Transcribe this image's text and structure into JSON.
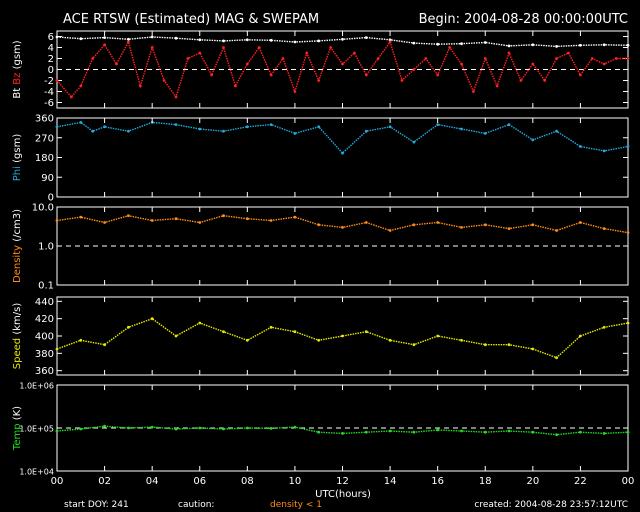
{
  "header": {
    "title": "ACE RTSW (Estimated) MAG & SWEPAM",
    "begin": "Begin: 2004-08-28 00:00:00UTC"
  },
  "footer": {
    "start_doy": "start DOY: 241",
    "caution": "caution:",
    "caution_note": "density < 1",
    "created": "created: 2004-08-28 23:57:12UTC"
  },
  "colors": {
    "bt": "#ffffff",
    "bz": "#ff2020",
    "phi": "#22aadd",
    "density": "#ff8c1a",
    "speed": "#e8e800",
    "temp": "#22dd22",
    "frame": "#ffffff",
    "caution": "#ff8c1a"
  },
  "chart_data": {
    "type": "line",
    "xlabel": "UTC(hours)",
    "x_ticks": [
      "00",
      "02",
      "04",
      "06",
      "08",
      "10",
      "12",
      "14",
      "16",
      "18",
      "20",
      "22",
      "00"
    ],
    "xlim": [
      0,
      24
    ],
    "panels": [
      {
        "id": "mag",
        "ylabel_parts": [
          "Bt",
          "Bz",
          "(gsm)"
        ],
        "ylim": [
          -7,
          7
        ],
        "y_ticks": [
          "6",
          "4",
          "2",
          "0",
          "-2",
          "-4",
          "-6"
        ],
        "reference_line": 0,
        "series": [
          {
            "name": "Bt",
            "points": [
              [
                0,
                5.9
              ],
              [
                1,
                5.6
              ],
              [
                2,
                5.8
              ],
              [
                3,
                5.5
              ],
              [
                4,
                5.9
              ],
              [
                5,
                5.7
              ],
              [
                6,
                5.4
              ],
              [
                7,
                5.2
              ],
              [
                8,
                5.4
              ],
              [
                9,
                5.3
              ],
              [
                10,
                5.0
              ],
              [
                11,
                5.2
              ],
              [
                12,
                5.5
              ],
              [
                13,
                5.8
              ],
              [
                14,
                5.4
              ],
              [
                15,
                4.8
              ],
              [
                16,
                4.6
              ],
              [
                17,
                4.7
              ],
              [
                18,
                4.9
              ],
              [
                19,
                4.3
              ],
              [
                20,
                4.5
              ],
              [
                21,
                4.2
              ],
              [
                22,
                4.4
              ],
              [
                23,
                4.5
              ],
              [
                24,
                4.4
              ]
            ]
          },
          {
            "name": "Bz",
            "points": [
              [
                0,
                -2
              ],
              [
                0.6,
                -5
              ],
              [
                1,
                -3
              ],
              [
                1.5,
                2
              ],
              [
                2,
                4.5
              ],
              [
                2.5,
                1
              ],
              [
                3,
                5
              ],
              [
                3.5,
                -3
              ],
              [
                4,
                4
              ],
              [
                4.5,
                -2
              ],
              [
                5,
                -5
              ],
              [
                5.5,
                2
              ],
              [
                6,
                3
              ],
              [
                6.5,
                -1
              ],
              [
                7,
                4
              ],
              [
                7.5,
                -3
              ],
              [
                8,
                1
              ],
              [
                8.5,
                4
              ],
              [
                9,
                -1
              ],
              [
                9.5,
                2
              ],
              [
                10,
                -4
              ],
              [
                10.5,
                3
              ],
              [
                11,
                -2
              ],
              [
                11.5,
                4
              ],
              [
                12,
                1
              ],
              [
                12.5,
                3
              ],
              [
                13,
                -1
              ],
              [
                13.5,
                2
              ],
              [
                14,
                5
              ],
              [
                14.5,
                -2
              ],
              [
                15,
                0
              ],
              [
                15.5,
                2
              ],
              [
                16,
                -1
              ],
              [
                16.5,
                4
              ],
              [
                17,
                1
              ],
              [
                17.5,
                -4
              ],
              [
                18,
                2
              ],
              [
                18.5,
                -3
              ],
              [
                19,
                3
              ],
              [
                19.5,
                -2
              ],
              [
                20,
                1
              ],
              [
                20.5,
                -2
              ],
              [
                21,
                2
              ],
              [
                21.5,
                3
              ],
              [
                22,
                -1
              ],
              [
                22.5,
                2
              ],
              [
                23,
                1
              ],
              [
                23.5,
                2
              ],
              [
                24,
                2
              ]
            ]
          }
        ]
      },
      {
        "id": "phi",
        "ylabel": "Phi (gsm)",
        "ylim": [
          0,
          360
        ],
        "y_ticks": [
          "360",
          "270",
          "180",
          "90",
          "0"
        ],
        "series": [
          {
            "name": "Phi",
            "points": [
              [
                0,
                320
              ],
              [
                1,
                340
              ],
              [
                1.5,
                300
              ],
              [
                2,
                320
              ],
              [
                3,
                300
              ],
              [
                4,
                340
              ],
              [
                5,
                330
              ],
              [
                6,
                310
              ],
              [
                7,
                300
              ],
              [
                8,
                320
              ],
              [
                9,
                330
              ],
              [
                10,
                290
              ],
              [
                11,
                320
              ],
              [
                12,
                200
              ],
              [
                13,
                300
              ],
              [
                14,
                320
              ],
              [
                15,
                250
              ],
              [
                16,
                330
              ],
              [
                17,
                310
              ],
              [
                18,
                290
              ],
              [
                19,
                330
              ],
              [
                20,
                260
              ],
              [
                21,
                300
              ],
              [
                22,
                230
              ],
              [
                23,
                210
              ],
              [
                24,
                230
              ]
            ]
          }
        ]
      },
      {
        "id": "density",
        "ylabel": "Density (/cm3)",
        "yscale": "log",
        "ylim": [
          0.1,
          10
        ],
        "y_ticks": [
          "10.0",
          "1.0",
          "0.1"
        ],
        "reference_line": 1,
        "series": [
          {
            "name": "Density",
            "points": [
              [
                0,
                4.5
              ],
              [
                1,
                5.5
              ],
              [
                2,
                4
              ],
              [
                3,
                6
              ],
              [
                4,
                4.5
              ],
              [
                5,
                5
              ],
              [
                6,
                4
              ],
              [
                7,
                6
              ],
              [
                8,
                5
              ],
              [
                9,
                4.5
              ],
              [
                10,
                5.5
              ],
              [
                11,
                3.5
              ],
              [
                12,
                3
              ],
              [
                13,
                4
              ],
              [
                14,
                2.5
              ],
              [
                15,
                3.5
              ],
              [
                16,
                4
              ],
              [
                17,
                3
              ],
              [
                18,
                3.5
              ],
              [
                19,
                2.8
              ],
              [
                20,
                3.5
              ],
              [
                21,
                2.5
              ],
              [
                22,
                4
              ],
              [
                23,
                2.8
              ],
              [
                24,
                2.2
              ]
            ]
          }
        ]
      },
      {
        "id": "speed",
        "ylabel": "Speed (km/s)",
        "ylim": [
          355,
          445
        ],
        "y_ticks": [
          "440",
          "420",
          "400",
          "380",
          "360"
        ],
        "series": [
          {
            "name": "Speed",
            "points": [
              [
                0,
                385
              ],
              [
                1,
                395
              ],
              [
                2,
                390
              ],
              [
                3,
                410
              ],
              [
                4,
                420
              ],
              [
                5,
                400
              ],
              [
                6,
                415
              ],
              [
                7,
                405
              ],
              [
                8,
                395
              ],
              [
                9,
                410
              ],
              [
                10,
                405
              ],
              [
                11,
                395
              ],
              [
                12,
                400
              ],
              [
                13,
                405
              ],
              [
                14,
                395
              ],
              [
                15,
                390
              ],
              [
                16,
                400
              ],
              [
                17,
                395
              ],
              [
                18,
                390
              ],
              [
                19,
                390
              ],
              [
                20,
                385
              ],
              [
                21,
                375
              ],
              [
                22,
                400
              ],
              [
                23,
                410
              ],
              [
                24,
                415
              ]
            ]
          }
        ]
      },
      {
        "id": "temp",
        "ylabel": "Temp (K)",
        "yscale": "log",
        "ylim": [
          10000,
          1000000
        ],
        "y_ticks": [
          "1.0E+06",
          "1.0E+05",
          "1.0E+04"
        ],
        "reference_line": 100000,
        "series": [
          {
            "name": "Temp",
            "points": [
              [
                0,
                85000
              ],
              [
                1,
                95000
              ],
              [
                2,
                110000
              ],
              [
                3,
                100000
              ],
              [
                4,
                105000
              ],
              [
                5,
                95000
              ],
              [
                6,
                100000
              ],
              [
                7,
                95000
              ],
              [
                8,
                100000
              ],
              [
                9,
                98000
              ],
              [
                10,
                105000
              ],
              [
                11,
                80000
              ],
              [
                12,
                75000
              ],
              [
                13,
                80000
              ],
              [
                14,
                85000
              ],
              [
                15,
                80000
              ],
              [
                16,
                90000
              ],
              [
                17,
                85000
              ],
              [
                18,
                80000
              ],
              [
                19,
                85000
              ],
              [
                20,
                80000
              ],
              [
                21,
                70000
              ],
              [
                22,
                80000
              ],
              [
                23,
                75000
              ],
              [
                24,
                80000
              ]
            ]
          }
        ]
      }
    ]
  }
}
